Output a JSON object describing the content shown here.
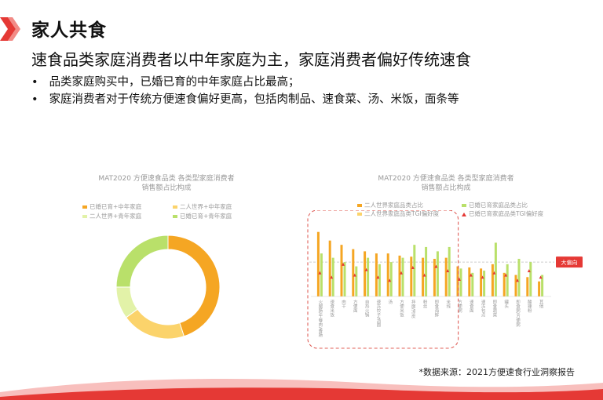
{
  "header": {
    "title": "家人共食",
    "subtitle": "速食品类家庭消费者以中年家庭为主，家庭消费者偏好传统速食",
    "bullets": [
      "品类家庭购买中，已婚已育的中年家庭占比最高；",
      "家庭消费者对于传统方便速食偏好更高，包括肉制品、速食菜、汤、米饭，面条等"
    ]
  },
  "footer": {
    "source": "*数据来源：2021方便速食行业洞察报告"
  },
  "colors": {
    "brand": "#e53935",
    "orange": "#f5a623",
    "lightOrange": "#fbd36b",
    "green": "#b9e06a",
    "lightGreen": "#e2f2a8",
    "triangle": "#e53935",
    "dashed": "#e0605a"
  },
  "chart_data": [
    {
      "type": "pie",
      "title_lines": [
        "MAT2020 方便速食品类 各类型家庭消费者",
        "销售额占比构成"
      ],
      "legend_position": "top",
      "series": [
        {
          "name": "已婚已育+中年家庭",
          "value": 0.45,
          "color": "#f5a623"
        },
        {
          "name": "二人世界+中年家庭",
          "value": 0.2,
          "color": "#fbd36b"
        },
        {
          "name": "二人世界+青年家庭",
          "value": 0.1,
          "color": "#e2f2a8"
        },
        {
          "name": "已婚已育+青年家庭",
          "value": 0.25,
          "color": "#b9e06a"
        }
      ],
      "legend_order": [
        0,
        1,
        2,
        3
      ]
    },
    {
      "type": "bar",
      "title_lines": [
        "MAT2020 方便速食品类 各类型家庭消费者",
        "销售额占比构成"
      ],
      "legend_position": "top",
      "series": [
        {
          "name": "二人世界家庭品类占比",
          "color": "#f5a623",
          "marker": "bar"
        },
        {
          "name": "已婚已育家庭品类占比",
          "color": "#b9e06a",
          "marker": "bar"
        },
        {
          "name": "二人世界家庭品类TGI偏好度",
          "color": "#fbd36b",
          "marker": "bar"
        },
        {
          "name": "已婚已育家庭品类TGI偏好度",
          "color": "#e53935",
          "marker": "triangle"
        }
      ],
      "categories": [
        "火腿肠/午餐肉/香肠",
        "速食米饭",
        "肉干",
        "方便面",
        "自热火锅",
        "速冻饺子/汤圆",
        "汤",
        "方便米饭",
        "拌面/凉皮",
        "粉丝",
        "即食海鲜",
        "米线",
        "方便粥",
        "速食面",
        "速冻包点",
        "即食蔬菜",
        "罐头",
        "即食粥/方便粥",
        "酸辣粉",
        "其他"
      ],
      "values": {
        "orange": [
          60,
          52,
          48,
          44,
          42,
          40,
          40,
          38,
          37,
          36,
          35,
          36,
          28,
          27,
          26,
          30,
          22,
          20,
          18,
          14
        ],
        "green": [
          40,
          36,
          32,
          28,
          36,
          30,
          32,
          36,
          48,
          46,
          42,
          46,
          26,
          22,
          24,
          50,
          30,
          35,
          32,
          20
        ]
      },
      "tgi": [
        22,
        18,
        30,
        20,
        25,
        18,
        15,
        22,
        27,
        20,
        28,
        24,
        16,
        20,
        18,
        22,
        20,
        15,
        24,
        18
      ],
      "ylim": [
        0,
        70
      ],
      "reference_line": {
        "value": 32,
        "label": "大偏向"
      },
      "highlight_first_n": 12
    }
  ]
}
